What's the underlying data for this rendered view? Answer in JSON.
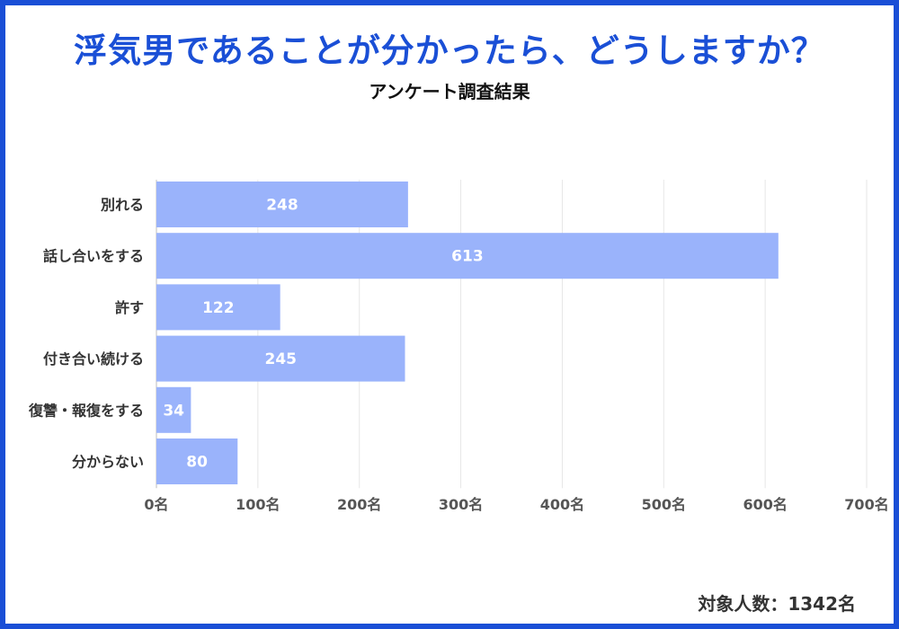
{
  "header": {
    "title": "浮気男であることが分かったら、どうしますか？",
    "subtitle": "アンケート調査結果"
  },
  "footer": {
    "respondents": "対象人数：1342名"
  },
  "colors": {
    "accent": "#1a4fd6",
    "bar": "#9ab3fb",
    "grid": "#e6e6e6",
    "bar_label": "#ffffff",
    "axis_text": "#555555"
  },
  "chart_data": {
    "type": "bar",
    "orientation": "horizontal",
    "title": "浮気男であることが分かったら、どうしますか？",
    "subtitle": "アンケート調査結果",
    "categories": [
      "別れる",
      "話し合いをする",
      "許す",
      "付き合い続ける",
      "復讐・報復をする",
      "分からない"
    ],
    "values": [
      248,
      613,
      122,
      245,
      34,
      80
    ],
    "data_labels": [
      "248",
      "613",
      "122",
      "245",
      "34",
      "80"
    ],
    "xlim": [
      0,
      700
    ],
    "x_ticks": [
      0,
      100,
      200,
      300,
      400,
      500,
      600,
      700
    ],
    "x_tick_labels": [
      "0名",
      "100名",
      "200名",
      "300名",
      "400名",
      "500名",
      "600名",
      "700名"
    ],
    "xlabel": "",
    "ylabel": "",
    "grid": true
  }
}
